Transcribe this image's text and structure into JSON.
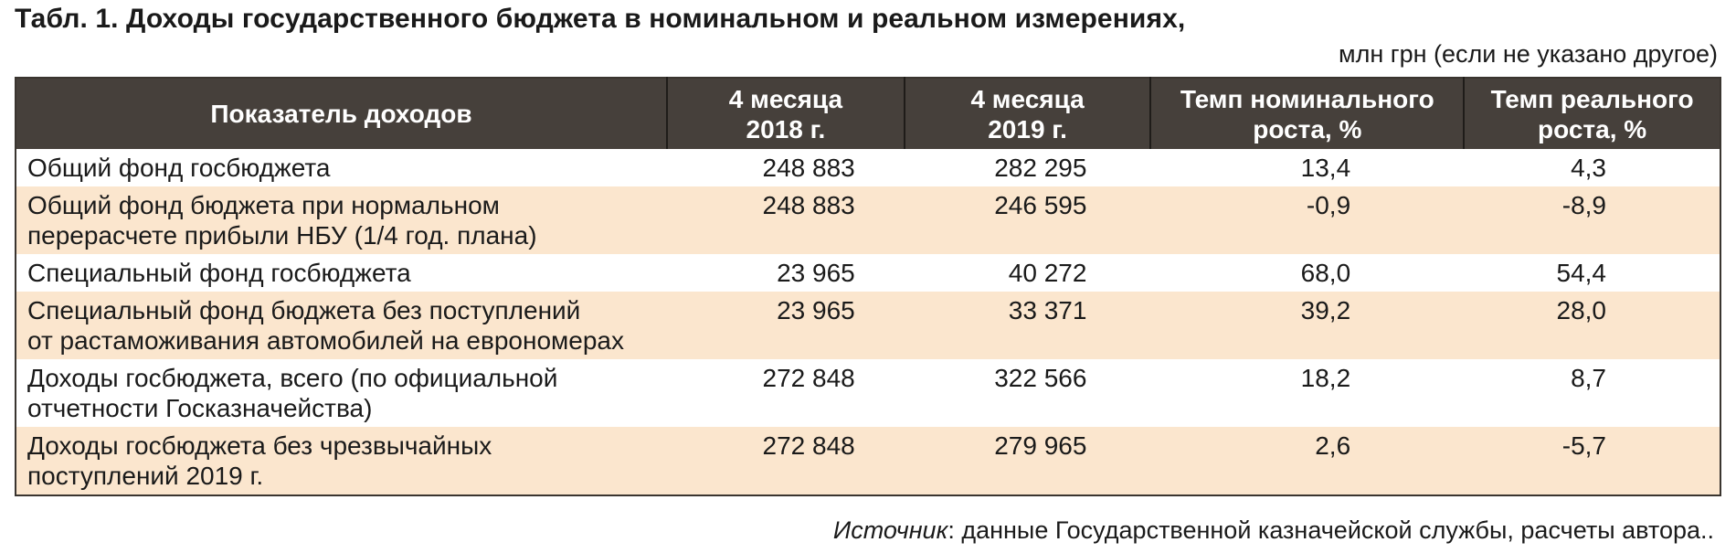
{
  "title": "Табл. 1. Доходы государственного бюджета в номинальном и реальном измерениях,",
  "units": "млн грн (если не указано другое)",
  "table": {
    "headers": [
      [
        "Показатель доходов"
      ],
      [
        "4 месяца",
        "2018 г."
      ],
      [
        "4 месяца",
        "2019 г."
      ],
      [
        "Темп номинального",
        "роста, %"
      ],
      [
        "Темп реального",
        "роста, %"
      ]
    ],
    "rows": [
      {
        "label": [
          "Общий фонд госбюджета"
        ],
        "values": [
          "248 883",
          "282 295",
          "13,4",
          "4,3"
        ]
      },
      {
        "label": [
          "Общий фонд бюджета при нормальном",
          "перерасчете прибыли НБУ (1/4 год. плана)"
        ],
        "values": [
          "248 883",
          "246 595",
          "-0,9",
          "-8,9"
        ]
      },
      {
        "label": [
          "Специальный фонд госбюджета"
        ],
        "values": [
          "23 965",
          "40 272",
          "68,0",
          "54,4"
        ]
      },
      {
        "label": [
          "Специальный фонд бюджета без поступлений",
          "от растаможивания автомобилей на еврономерах"
        ],
        "values": [
          "23 965",
          "33 371",
          "39,2",
          "28,0"
        ]
      },
      {
        "label": [
          "Доходы госбюджета, всего (по официальной",
          "отчетности Госказначейства)"
        ],
        "values": [
          "272 848",
          "322 566",
          "18,2",
          "8,7"
        ]
      },
      {
        "label": [
          "Доходы госбюджета без чрезвычайных",
          "поступлений 2019 г."
        ],
        "values": [
          "272 848",
          "279 965",
          "2,6",
          "-5,7"
        ]
      }
    ]
  },
  "source": {
    "prefix": "Источник",
    "text": ": данные Государственной казначейской службы, расчеты автора.."
  },
  "colors": {
    "header_bg": "#46403b",
    "row_alt_bg": "#fbe6ce"
  }
}
